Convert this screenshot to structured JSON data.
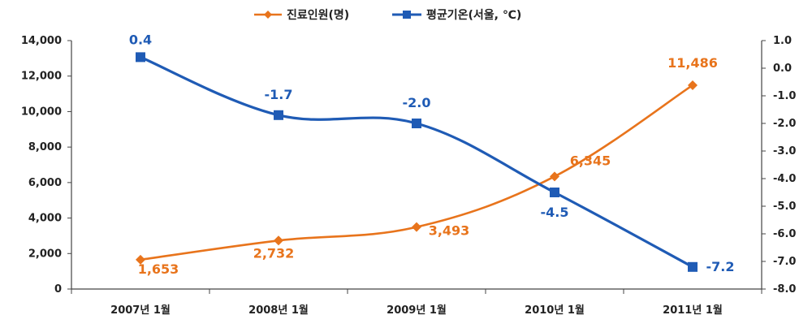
{
  "chart_data": {
    "type": "line",
    "categories": [
      "2007년 1월",
      "2008년 1월",
      "2009년 1월",
      "2010년 1월",
      "2011년 1월"
    ],
    "series": [
      {
        "name": "진료인원(명)",
        "axis": "left",
        "color": "#E8741C",
        "marker": "diamond",
        "values": [
          1653,
          2732,
          3493,
          6345,
          11486
        ],
        "labels": [
          "1,653",
          "2,732",
          "3,493",
          "6,345",
          "11,486"
        ]
      },
      {
        "name": "평균기온(서울, ℃)",
        "axis": "right",
        "color": "#1F5BB5",
        "marker": "square",
        "values": [
          0.4,
          -1.7,
          -2.0,
          -4.5,
          -7.2
        ],
        "labels": [
          "0.4",
          "-1.7",
          "-2.0",
          "-4.5",
          "-7.2"
        ]
      }
    ],
    "y_left": {
      "min": 0,
      "max": 14000,
      "ticks": [
        0,
        2000,
        4000,
        6000,
        8000,
        10000,
        12000,
        14000
      ],
      "tick_labels": [
        "0",
        "2,000",
        "4,000",
        "6,000",
        "8,000",
        "10,000",
        "12,000",
        "14,000"
      ]
    },
    "y_right": {
      "min": -8.0,
      "max": 1.0,
      "ticks": [
        1.0,
        0.0,
        -1.0,
        -2.0,
        -3.0,
        -4.0,
        -5.0,
        -6.0,
        -7.0,
        -8.0
      ],
      "tick_labels": [
        "1.0",
        "0.0",
        "-1.0",
        "-2.0",
        "-3.0",
        "-4.0",
        "-5.0",
        "-6.0",
        "-7.0",
        "-8.0"
      ]
    },
    "legend_position": "top-center",
    "grid": false
  }
}
